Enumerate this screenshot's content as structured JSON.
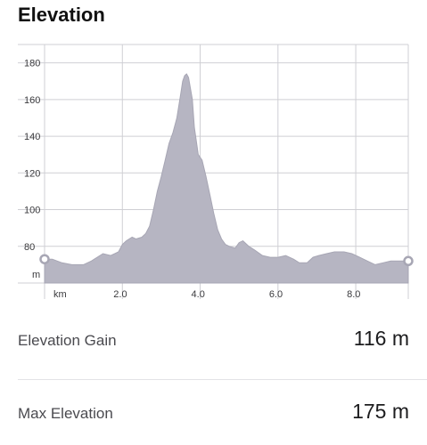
{
  "header": {
    "title": "Elevation"
  },
  "colors": {
    "area_fill": "#b6b5c2",
    "area_stroke": "#a7a6b4",
    "grid": "#cfcfd4",
    "axis_text": "#3a3a3d",
    "marker": "#ffffff",
    "marker_stroke": "#a7a6b4"
  },
  "chart_data": {
    "type": "area",
    "xlabel": "",
    "ylabel": "",
    "y_unit_label": "m",
    "x_unit_label": "km",
    "xlim": [
      0,
      9.35
    ],
    "ylim": [
      60,
      190
    ],
    "y_ticks": [
      80,
      100,
      120,
      140,
      160,
      180
    ],
    "x_ticks": [
      2.0,
      4.0,
      6.0,
      8.0
    ],
    "y_tick_labels": [
      "80",
      "100",
      "120",
      "140",
      "160",
      "180"
    ],
    "x_tick_labels": [
      "2.0",
      "4.0",
      "6.0",
      "8.0"
    ],
    "grid": true,
    "x": [
      0.0,
      0.2,
      0.45,
      0.7,
      1.0,
      1.2,
      1.5,
      1.7,
      1.9,
      2.0,
      2.1,
      2.25,
      2.35,
      2.5,
      2.6,
      2.7,
      2.8,
      2.9,
      3.0,
      3.1,
      3.2,
      3.3,
      3.4,
      3.5,
      3.55,
      3.6,
      3.65,
      3.7,
      3.8,
      3.85,
      3.95,
      4.05,
      4.15,
      4.25,
      4.35,
      4.45,
      4.55,
      4.65,
      4.75,
      4.9,
      5.0,
      5.1,
      5.25,
      5.4,
      5.6,
      5.8,
      6.0,
      6.2,
      6.4,
      6.55,
      6.75,
      6.9,
      7.05,
      7.25,
      7.45,
      7.7,
      7.9,
      8.1,
      8.3,
      8.5,
      8.7,
      8.9,
      9.1,
      9.35
    ],
    "y": [
      73,
      73,
      71,
      70,
      70,
      72,
      76,
      75,
      77,
      81,
      83,
      85,
      84,
      85,
      87,
      91,
      100,
      110,
      118,
      127,
      136,
      142,
      150,
      163,
      170,
      173,
      174,
      172,
      160,
      145,
      130,
      127,
      118,
      108,
      98,
      89,
      84,
      81,
      80,
      79,
      82,
      83,
      80,
      78,
      75,
      74,
      74,
      75,
      73,
      71,
      71,
      74,
      75,
      76,
      77,
      77,
      76,
      74,
      72,
      70,
      71,
      72,
      72,
      72
    ],
    "start_marker": true,
    "end_marker": true
  },
  "stats": [
    {
      "label": "Elevation Gain",
      "value": "116 m"
    },
    {
      "label": "Max Elevation",
      "value": "175 m"
    }
  ]
}
